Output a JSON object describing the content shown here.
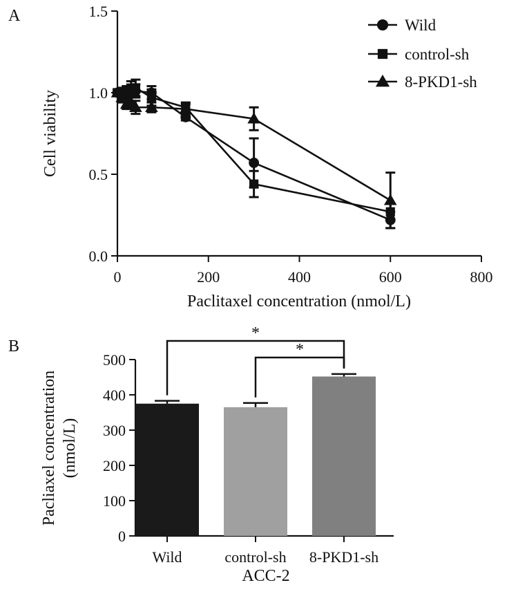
{
  "chart_data": [
    {
      "panel_label": "A",
      "type": "line",
      "xlabel": "Paclitaxel concentration (nmol/L)",
      "ylabel": "Cell viability",
      "xlim": [
        0,
        800
      ],
      "ylim": [
        0,
        1.5
      ],
      "xticks": [
        0,
        200,
        400,
        600,
        800
      ],
      "yticks": [
        0.0,
        0.5,
        1.0,
        1.5
      ],
      "legend_position": "top-right",
      "series": [
        {
          "name": "Wild",
          "marker": "circle",
          "x": [
            0,
            10,
            20,
            30,
            40,
            75,
            150,
            300,
            600
          ],
          "y": [
            1.0,
            1.0,
            1.0,
            1.02,
            1.01,
            1.0,
            0.85,
            0.57,
            0.22
          ],
          "err": [
            0.02,
            0.03,
            0.04,
            0.05,
            0.04,
            0.04,
            0.02,
            0.15,
            0.05
          ]
        },
        {
          "name": "control-sh",
          "marker": "square",
          "x": [
            0,
            10,
            20,
            30,
            40,
            75,
            150,
            300,
            600
          ],
          "y": [
            1.0,
            1.0,
            0.99,
            1.0,
            1.03,
            0.97,
            0.91,
            0.44,
            0.27
          ],
          "err": [
            0.02,
            0.03,
            0.04,
            0.05,
            0.05,
            0.05,
            0.03,
            0.08,
            0.05
          ]
        },
        {
          "name": "8-PKD1-sh",
          "marker": "triangle",
          "x": [
            0,
            10,
            20,
            30,
            40,
            75,
            150,
            300,
            600
          ],
          "y": [
            1.0,
            0.97,
            0.93,
            0.94,
            0.91,
            0.91,
            0.9,
            0.84,
            0.34
          ],
          "err": [
            0.02,
            0.03,
            0.03,
            0.04,
            0.04,
            0.03,
            0.03,
            0.07,
            0.17
          ]
        }
      ]
    },
    {
      "panel_label": "B",
      "type": "bar",
      "categories": [
        "Wild",
        "control-sh",
        "8-PKD1-sh"
      ],
      "values": [
        375,
        365,
        452
      ],
      "errors": [
        8,
        12,
        7
      ],
      "colors": [
        "#1a1a1a",
        "#a0a0a0",
        "#808080"
      ],
      "xlabel": "ACC-2",
      "ylabel_lines": [
        "Pacliaxel concentration",
        "(nmol/L)"
      ],
      "ylim": [
        0,
        500
      ],
      "yticks": [
        0,
        100,
        200,
        300,
        400,
        500
      ],
      "significance": [
        {
          "from": 0,
          "to": 2,
          "label": "*"
        },
        {
          "from": 1,
          "to": 2,
          "label": "*"
        }
      ]
    }
  ]
}
